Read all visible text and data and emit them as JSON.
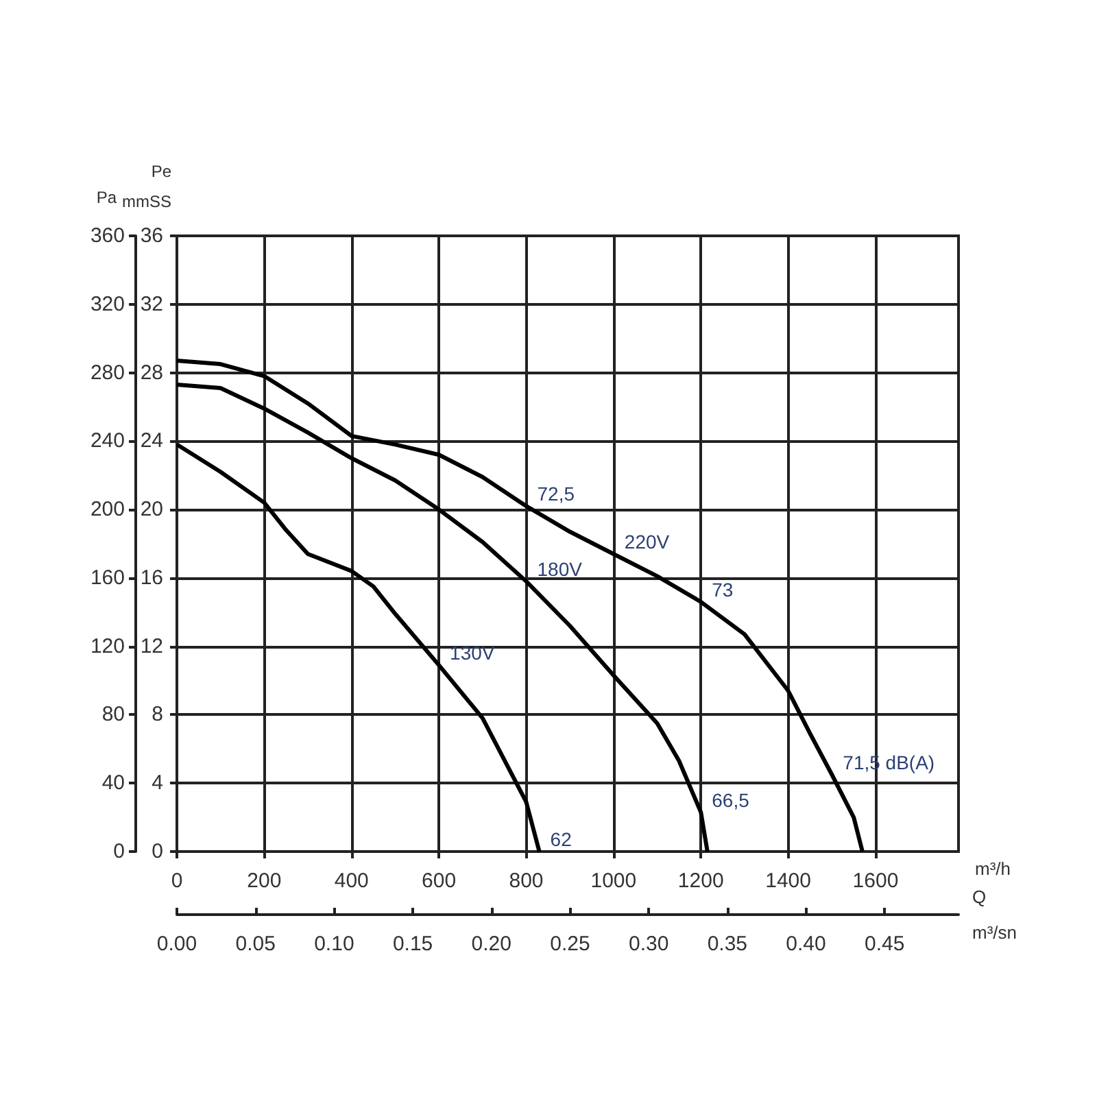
{
  "chart_data": {
    "type": "line",
    "xlabel": "m³/h",
    "x2label": "Q\nm³/sn",
    "ylabel": "Pa",
    "y2label": "Pe\nmmSS",
    "xlim": [
      0,
      1790
    ],
    "xticks": [
      0,
      200,
      400,
      600,
      800,
      1000,
      1200,
      1400,
      1600
    ],
    "x2lim": [
      0,
      0.497
    ],
    "x2ticks": [
      {
        "value": 0,
        "label": "0.00"
      },
      {
        "value": 0.05,
        "label": "0.05"
      },
      {
        "value": 0.1,
        "label": "0.10"
      },
      {
        "value": 0.15,
        "label": "0.15"
      },
      {
        "value": 0.2,
        "label": "0.20"
      },
      {
        "value": 0.25,
        "label": "0.25"
      },
      {
        "value": 0.3,
        "label": "0.30"
      },
      {
        "value": 0.35,
        "label": "0.35"
      },
      {
        "value": 0.4,
        "label": "0.40"
      },
      {
        "value": 0.45,
        "label": "0.45"
      }
    ],
    "ylim": [
      0,
      360
    ],
    "yticks": [
      0,
      40,
      80,
      120,
      160,
      200,
      240,
      280,
      320,
      360
    ],
    "y2lim": [
      0,
      36
    ],
    "y2ticks": [
      0,
      4,
      8,
      12,
      16,
      20,
      24,
      28,
      32,
      36
    ],
    "grid": true,
    "series": [
      {
        "color": "#000000",
        "x": [
          0,
          100,
          200,
          300,
          400,
          500,
          600,
          700,
          800,
          900,
          1000,
          1100,
          1200,
          1300,
          1400,
          1450,
          1500,
          1550,
          1570
        ],
        "values": [
          287,
          285,
          278,
          262,
          243,
          238,
          232,
          219,
          202,
          187,
          174,
          161,
          146,
          127,
          94,
          69,
          45,
          20,
          0
        ]
      },
      {
        "color": "#000000",
        "x": [
          0,
          100,
          200,
          300,
          400,
          500,
          600,
          700,
          800,
          900,
          1000,
          1100,
          1150,
          1200,
          1215
        ],
        "values": [
          273,
          271,
          259,
          245,
          230,
          217,
          200,
          181,
          158,
          132,
          103,
          75,
          53,
          23,
          0
        ]
      },
      {
        "color": "#000000",
        "x": [
          0,
          100,
          200,
          250,
          300,
          400,
          450,
          500,
          600,
          700,
          800,
          830
        ],
        "values": [
          238,
          222,
          204,
          188,
          174,
          164,
          155,
          139,
          109,
          78,
          29,
          0
        ]
      }
    ],
    "annotations": [
      {
        "text": "72,5",
        "x": 800,
        "y": 202
      },
      {
        "text": "220V",
        "x": 1000,
        "y": 174
      },
      {
        "text": "73",
        "x": 1200,
        "y": 146
      },
      {
        "text": "180V",
        "x": 800,
        "y": 158
      },
      {
        "text": "130V",
        "x": 600,
        "y": 109
      },
      {
        "text": "62",
        "x": 830,
        "y": 0
      },
      {
        "text": "66,5",
        "x": 1200,
        "y": 23
      },
      {
        "text": "71,5 dB(A)",
        "x": 1500,
        "y": 45
      }
    ]
  }
}
